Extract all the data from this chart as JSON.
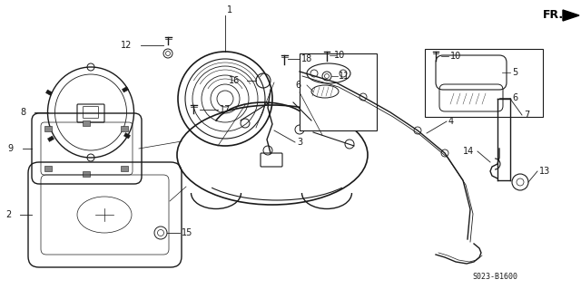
{
  "bg_color": "#ffffff",
  "fig_width": 6.4,
  "fig_height": 3.19,
  "dpi": 100,
  "diagram_code": "S023-B1600",
  "line_color": "#1a1a1a"
}
